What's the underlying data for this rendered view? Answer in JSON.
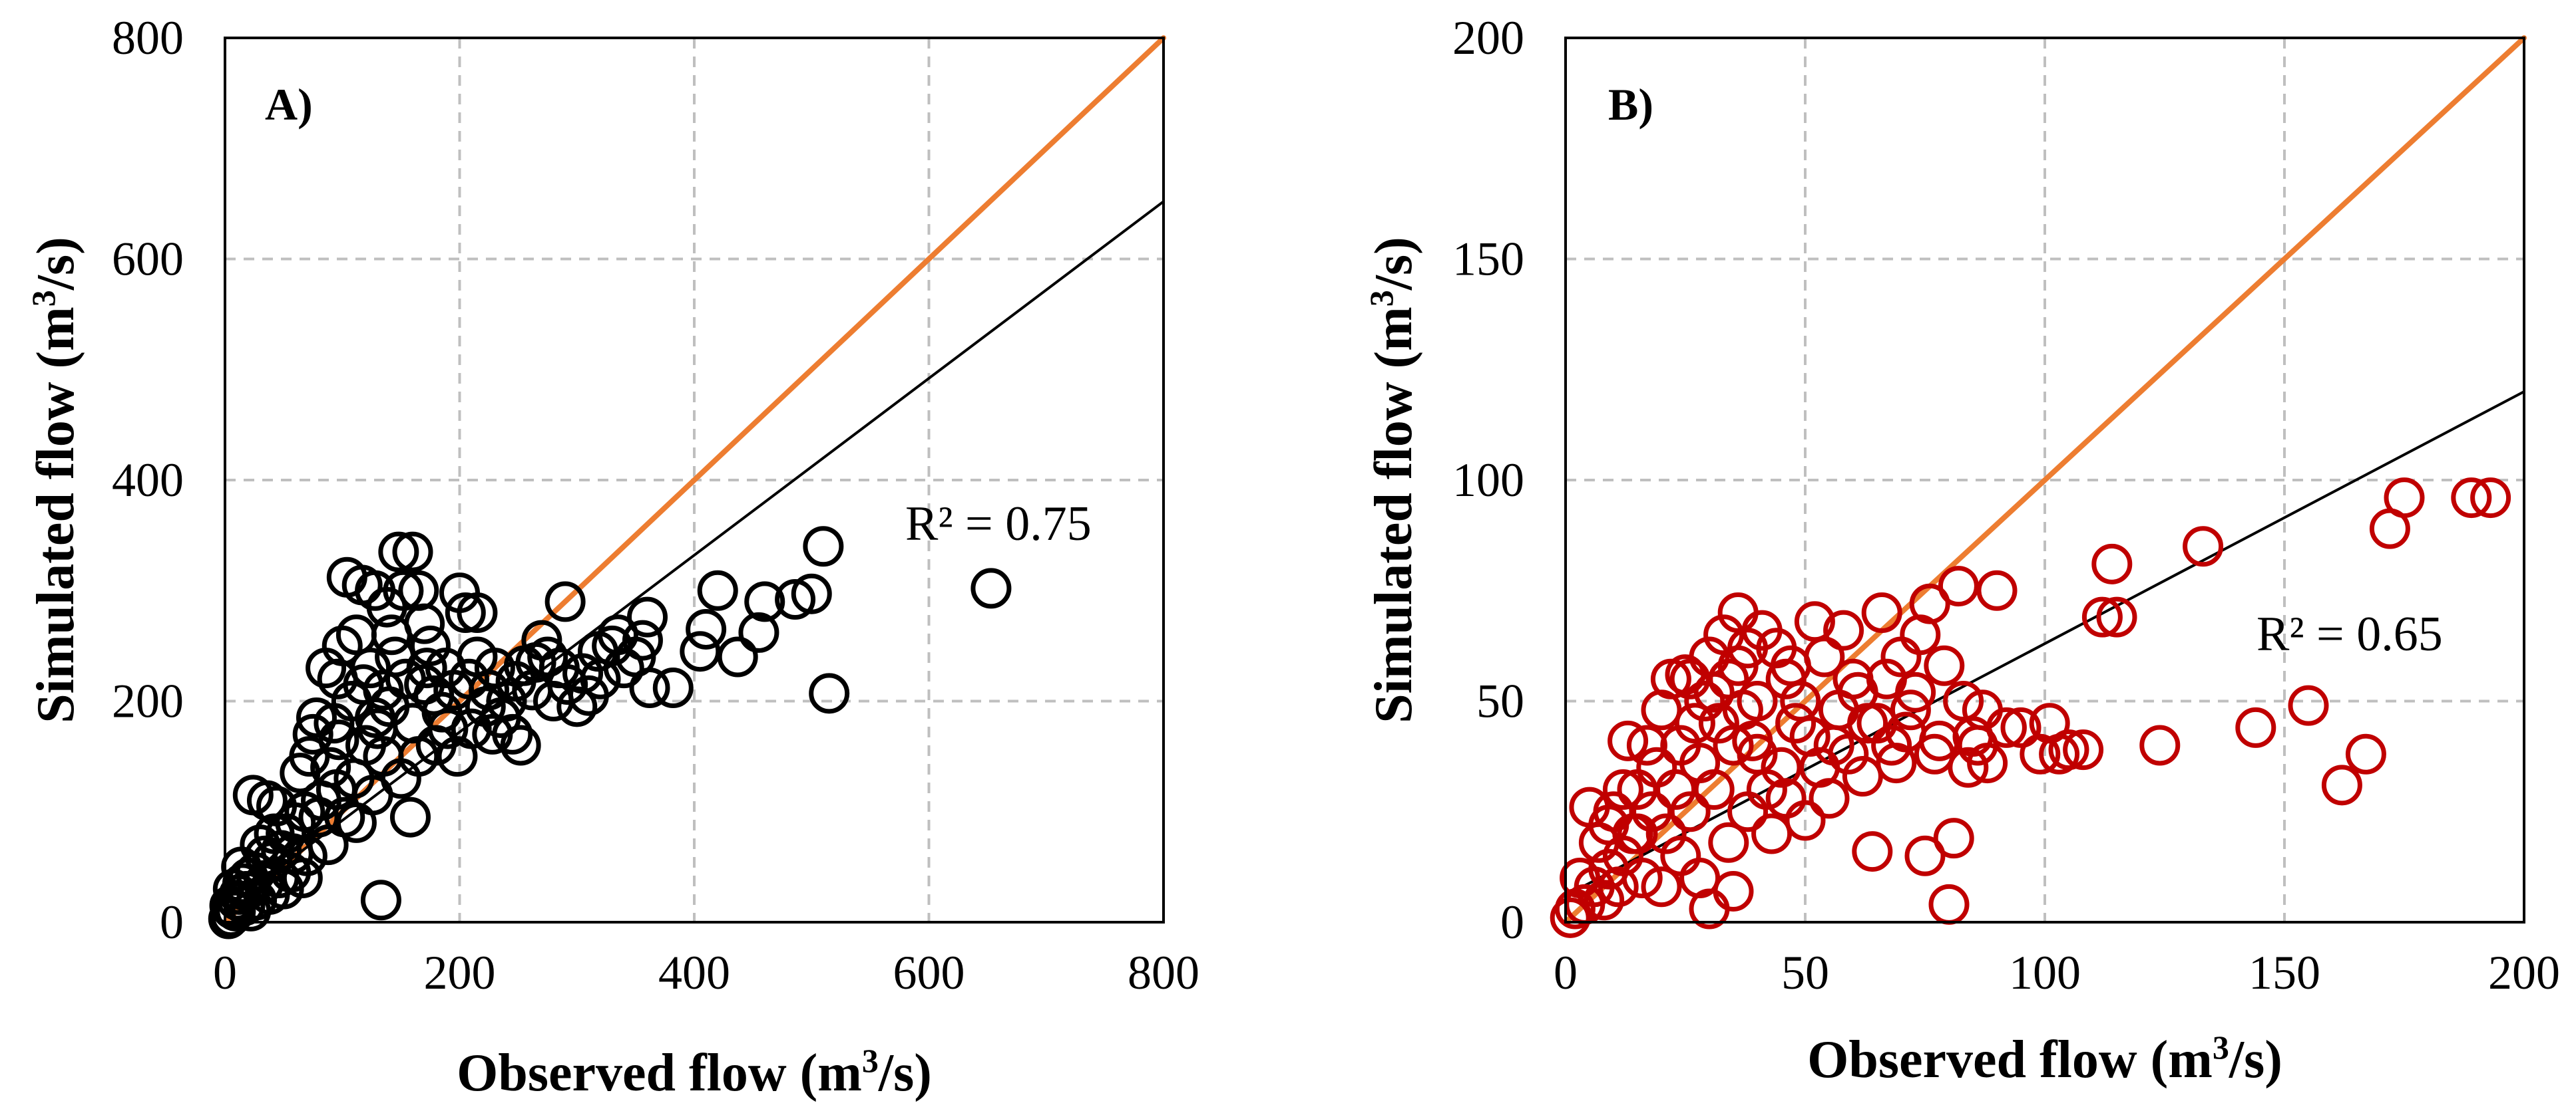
{
  "chart_data": [
    {
      "type": "scatter",
      "panel_label": "A)",
      "xlabel_main": "Observed flow (m",
      "xlabel_sup": "3",
      "xlabel_tail": "/s)",
      "ylabel_main": "Simulated flow (m",
      "ylabel_sup": "3",
      "ylabel_tail": "/s)",
      "xlim": [
        0,
        800
      ],
      "ylim": [
        0,
        800
      ],
      "xticks": [
        0,
        200,
        400,
        600,
        800
      ],
      "yticks": [
        0,
        200,
        400,
        600,
        800
      ],
      "x_tick_labels": [
        "0",
        "200",
        "400",
        "600",
        "800"
      ],
      "y_tick_labels": [
        "0",
        "200",
        "400",
        "600",
        "800"
      ],
      "grid": true,
      "r2_label": "R² = 0.75",
      "one_to_one_line": {
        "from": [
          0,
          0
        ],
        "to": [
          800,
          800
        ],
        "color": "#ED7D31"
      },
      "trend_line": {
        "slope": 0.8,
        "intercept": 12,
        "color": "#000000"
      },
      "marker_color": "#000000",
      "points": [
        [
          653,
          302
        ],
        [
          515,
          207
        ],
        [
          510,
          340
        ],
        [
          500,
          297
        ],
        [
          486,
          292
        ],
        [
          460,
          290
        ],
        [
          455,
          262
        ],
        [
          437,
          240
        ],
        [
          420,
          300
        ],
        [
          410,
          265
        ],
        [
          405,
          245
        ],
        [
          382,
          212
        ],
        [
          362,
          212
        ],
        [
          360,
          276
        ],
        [
          356,
          255
        ],
        [
          350,
          240
        ],
        [
          340,
          230
        ],
        [
          330,
          250
        ],
        [
          318,
          245
        ],
        [
          305,
          225
        ],
        [
          290,
          290
        ],
        [
          285,
          230
        ],
        [
          275,
          240
        ],
        [
          262,
          210
        ],
        [
          255,
          232
        ],
        [
          248,
          218
        ],
        [
          240,
          200
        ],
        [
          230,
          230
        ],
        [
          222,
          195
        ],
        [
          215,
          280
        ],
        [
          205,
          280
        ],
        [
          200,
          298
        ],
        [
          195,
          210
        ],
        [
          188,
          230
        ],
        [
          180,
          160
        ],
        [
          175,
          250
        ],
        [
          170,
          270
        ],
        [
          165,
          300
        ],
        [
          160,
          335
        ],
        [
          152,
          300
        ],
        [
          148,
          335
        ],
        [
          145,
          240
        ],
        [
          140,
          195
        ],
        [
          138,
          285
        ],
        [
          135,
          210
        ],
        [
          133,
          20
        ],
        [
          130,
          175
        ],
        [
          128,
          300
        ],
        [
          124,
          230
        ],
        [
          120,
          160
        ],
        [
          117,
          305
        ],
        [
          112,
          260
        ],
        [
          108,
          200
        ],
        [
          104,
          312
        ],
        [
          100,
          250
        ],
        [
          97,
          165
        ],
        [
          93,
          180
        ],
        [
          90,
          140
        ],
        [
          86,
          230
        ],
        [
          82,
          110
        ],
        [
          78,
          185
        ],
        [
          75,
          170
        ],
        [
          72,
          150
        ],
        [
          68,
          100
        ],
        [
          64,
          135
        ],
        [
          60,
          90
        ],
        [
          56,
          45
        ],
        [
          52,
          80
        ],
        [
          48,
          65
        ],
        [
          44,
          105
        ],
        [
          40,
          55
        ],
        [
          36,
          110
        ],
        [
          33,
          35
        ],
        [
          30,
          70
        ],
        [
          27,
          20
        ],
        [
          24,
          115
        ],
        [
          20,
          40
        ],
        [
          17,
          15
        ],
        [
          14,
          50
        ],
        [
          12,
          25
        ],
        [
          9,
          10
        ],
        [
          7,
          30
        ],
        [
          5,
          5
        ],
        [
          4,
          15
        ],
        [
          3,
          3
        ],
        [
          160,
          180
        ],
        [
          170,
          215
        ],
        [
          185,
          190
        ],
        [
          210,
          175
        ],
        [
          225,
          210
        ],
        [
          245,
          170
        ],
        [
          265,
          235
        ],
        [
          280,
          200
        ],
        [
          300,
          195
        ],
        [
          320,
          220
        ],
        [
          135,
          150
        ],
        [
          110,
          130
        ],
        [
          95,
          120
        ],
        [
          80,
          95
        ],
        [
          70,
          60
        ],
        [
          58,
          62
        ],
        [
          46,
          40
        ],
        [
          38,
          25
        ],
        [
          26,
          45
        ],
        [
          18,
          28
        ],
        [
          150,
          130
        ],
        [
          165,
          150
        ],
        [
          178,
          205
        ],
        [
          190,
          175
        ],
        [
          215,
          240
        ],
        [
          235,
          185
        ],
        [
          252,
          160
        ],
        [
          270,
          255
        ],
        [
          292,
          215
        ],
        [
          310,
          205
        ],
        [
          335,
          260
        ],
        [
          128,
          185
        ],
        [
          118,
          215
        ],
        [
          102,
          95
        ],
        [
          88,
          70
        ],
        [
          66,
          40
        ],
        [
          50,
          30
        ],
        [
          42,
          80
        ],
        [
          34,
          60
        ],
        [
          22,
          10
        ],
        [
          15,
          35
        ],
        [
          10,
          20
        ],
        [
          6,
          12
        ],
        [
          158,
          95
        ],
        [
          172,
          230
        ],
        [
          198,
          150
        ],
        [
          208,
          220
        ],
        [
          228,
          170
        ],
        [
          142,
          260
        ],
        [
          126,
          115
        ],
        [
          112,
          90
        ],
        [
          96,
          220
        ],
        [
          154,
          220
        ]
      ]
    },
    {
      "type": "scatter",
      "panel_label": "B)",
      "xlabel_main": "Observed flow (m",
      "xlabel_sup": "3",
      "xlabel_tail": "/s)",
      "ylabel_main": "Simulated flow (m",
      "ylabel_sup": "3",
      "ylabel_tail": "/s)",
      "xlim": [
        0,
        200
      ],
      "ylim": [
        0,
        200
      ],
      "xticks": [
        0,
        50,
        100,
        150,
        200
      ],
      "yticks": [
        0,
        50,
        100,
        150,
        200
      ],
      "x_tick_labels": [
        "0",
        "50",
        "100",
        "150",
        "200"
      ],
      "y_tick_labels": [
        "0",
        "50",
        "100",
        "150",
        "200"
      ],
      "grid": true,
      "r2_label": "R² = 0.65",
      "one_to_one_line": {
        "from": [
          0,
          0
        ],
        "to": [
          200,
          200
        ],
        "color": "#ED7D31"
      },
      "trend_line": {
        "slope": 0.57,
        "intercept": 6,
        "color": "#000000"
      },
      "marker_color": "#C00000",
      "points": [
        [
          193,
          96
        ],
        [
          189,
          96
        ],
        [
          175,
          96
        ],
        [
          172,
          89
        ],
        [
          167,
          38
        ],
        [
          162,
          31
        ],
        [
          155,
          49
        ],
        [
          144,
          44
        ],
        [
          133,
          85
        ],
        [
          124,
          40
        ],
        [
          115,
          69
        ],
        [
          114,
          81
        ],
        [
          112,
          69
        ],
        [
          108,
          39
        ],
        [
          105,
          39
        ],
        [
          101,
          45
        ],
        [
          99,
          38
        ],
        [
          92,
          44
        ],
        [
          90,
          75
        ],
        [
          87,
          48
        ],
        [
          84,
          35
        ],
        [
          82,
          76
        ],
        [
          81,
          19
        ],
        [
          80,
          4
        ],
        [
          78,
          41
        ],
        [
          76,
          72
        ],
        [
          75,
          15
        ],
        [
          73,
          52
        ],
        [
          70,
          60
        ],
        [
          68,
          40
        ],
        [
          66,
          70
        ],
        [
          64,
          16
        ],
        [
          63,
          45
        ],
        [
          60,
          55
        ],
        [
          58,
          66
        ],
        [
          56,
          40
        ],
        [
          54,
          60
        ],
        [
          52,
          68
        ],
        [
          50,
          23
        ],
        [
          48,
          45
        ],
        [
          46,
          55
        ],
        [
          44,
          62
        ],
        [
          42,
          30
        ],
        [
          40,
          50
        ],
        [
          38,
          62
        ],
        [
          36,
          70
        ],
        [
          35,
          40
        ],
        [
          34,
          55
        ],
        [
          32,
          45
        ],
        [
          31,
          30
        ],
        [
          30,
          60
        ],
        [
          29,
          50
        ],
        [
          28,
          36
        ],
        [
          27,
          45
        ],
        [
          26,
          25
        ],
        [
          25,
          56
        ],
        [
          24,
          40
        ],
        [
          23,
          30
        ],
        [
          22,
          55
        ],
        [
          21,
          20
        ],
        [
          20,
          48
        ],
        [
          19,
          35
        ],
        [
          18,
          25
        ],
        [
          17,
          40
        ],
        [
          16,
          10
        ],
        [
          15,
          30
        ],
        [
          14,
          20
        ],
        [
          13,
          41
        ],
        [
          12,
          15
        ],
        [
          11,
          8
        ],
        [
          10,
          25
        ],
        [
          9,
          12
        ],
        [
          8,
          5
        ],
        [
          7,
          18
        ],
        [
          6,
          8
        ],
        [
          5,
          26
        ],
        [
          4,
          4
        ],
        [
          3,
          10
        ],
        [
          2,
          3
        ],
        [
          1,
          1
        ],
        [
          35,
          7
        ],
        [
          30,
          3
        ],
        [
          47,
          58
        ],
        [
          53,
          35
        ],
        [
          57,
          48
        ],
        [
          62,
          33
        ],
        [
          67,
          55
        ],
        [
          71,
          43
        ],
        [
          74,
          65
        ],
        [
          79,
          58
        ],
        [
          85,
          42
        ],
        [
          88,
          36
        ],
        [
          95,
          44
        ],
        [
          103,
          38
        ],
        [
          41,
          66
        ],
        [
          39,
          41
        ],
        [
          37,
          48
        ],
        [
          33,
          65
        ],
        [
          45,
          35
        ],
        [
          49,
          50
        ],
        [
          51,
          42
        ],
        [
          55,
          28
        ],
        [
          59,
          38
        ],
        [
          61,
          52
        ],
        [
          65,
          45
        ],
        [
          69,
          36
        ],
        [
          72,
          48
        ],
        [
          77,
          38
        ],
        [
          83,
          50
        ],
        [
          86,
          40
        ],
        [
          24,
          15
        ],
        [
          28,
          10
        ],
        [
          20,
          8
        ],
        [
          15,
          20
        ],
        [
          12,
          30
        ],
        [
          9,
          22
        ],
        [
          43,
          20
        ],
        [
          46,
          28
        ],
        [
          34,
          18
        ],
        [
          38,
          25
        ],
        [
          26,
          55
        ],
        [
          31,
          52
        ],
        [
          36,
          58
        ],
        [
          40,
          38
        ]
      ]
    }
  ]
}
